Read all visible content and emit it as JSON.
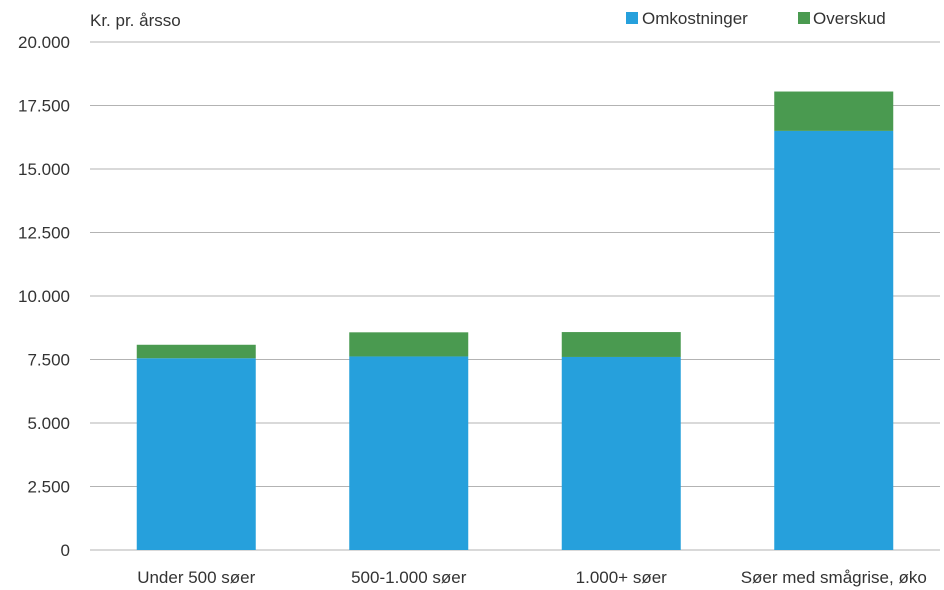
{
  "chart_data": {
    "type": "bar",
    "stacked": true,
    "ylabel": "Kr. pr. årsso",
    "ylim": [
      0,
      20000
    ],
    "yticks": [
      0,
      2500,
      5000,
      7500,
      10000,
      12500,
      15000,
      17500,
      20000
    ],
    "ytick_labels": [
      "0",
      "2.500",
      "5.000",
      "7.500",
      "10.000",
      "12.500",
      "15.000",
      "17.500",
      "20.000"
    ],
    "categories": [
      "Under 500 søer",
      "500-1.000 søer",
      "1.000+ søer",
      "Søer med smågrise, øko"
    ],
    "series": [
      {
        "name": "Omkostninger",
        "color": "#26a0dc",
        "values": [
          7550,
          7620,
          7600,
          16500
        ]
      },
      {
        "name": "Overskud",
        "color": "#4a9a50",
        "values": [
          530,
          950,
          980,
          1550
        ]
      }
    ],
    "grid": true,
    "legend": "top-right"
  }
}
